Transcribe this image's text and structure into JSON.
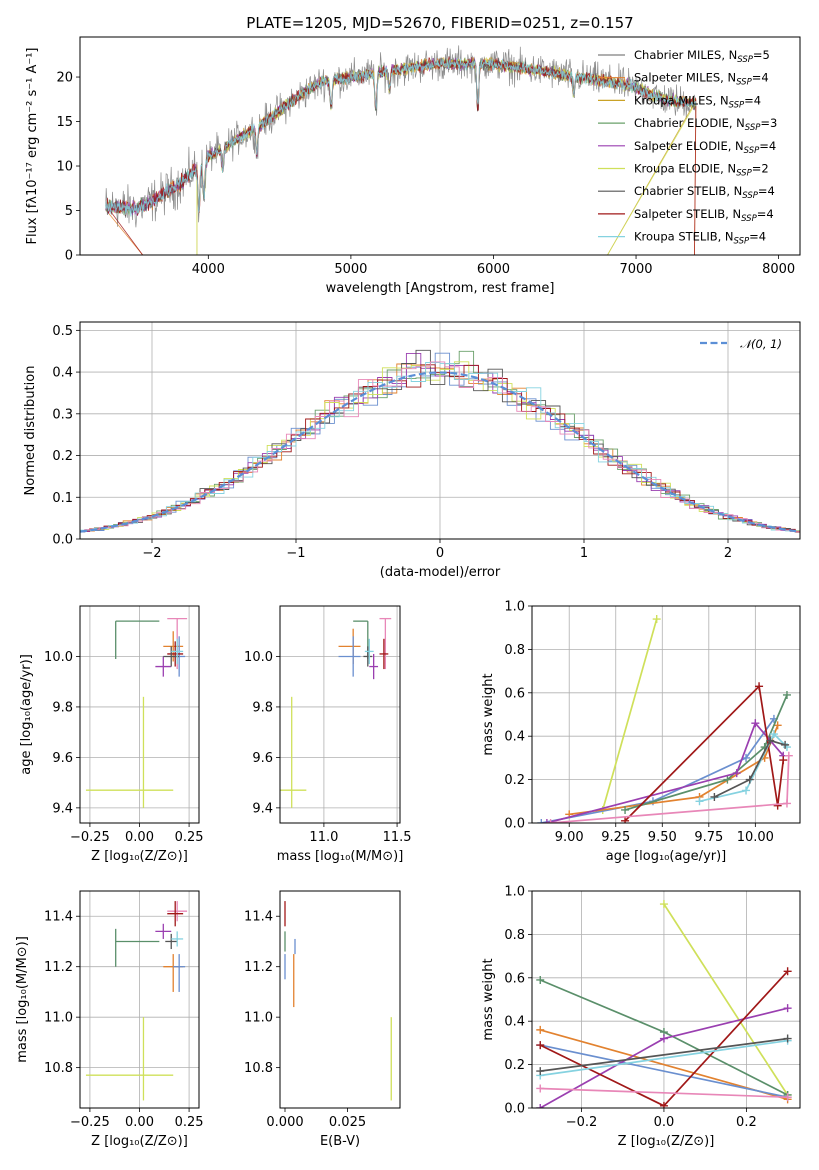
{
  "figure_title": "PLATE=1205, MJD=52670, FIBERID=0251, z=0.157",
  "colors": {
    "Chabrier MILES": "#6a8fcf",
    "Salpeter MILES": "#e2822f",
    "Kroupa MILES": "#c9a227",
    "Chabrier ELODIE": "#6aa06a",
    "Salpeter ELODIE": "#9a3fb0",
    "Kroupa ELODIE": "#cfe05a",
    "Chabrier STELIB": "#555555",
    "Salpeter STELIB": "#a01818",
    "Kroupa STELIB": "#85d2e0",
    "data": "#7f7f7f",
    "pink": "#e887b8",
    "green": "#5a8f6a",
    "normal": "#5b8fd6"
  },
  "chart_data": [
    {
      "id": "spectrum",
      "type": "line",
      "title": "PLATE=1205, MJD=52670, FIBERID=0251, z=0.157",
      "xlabel": "wavelength [Angstrom, rest frame]",
      "ylabel": "Flux [fλ10⁻¹⁷ erg cm⁻² s⁻¹ A⁻¹]",
      "xlim": [
        3100,
        8150
      ],
      "ylim": [
        0,
        24.5
      ],
      "xticks": [
        4000,
        5000,
        6000,
        7000,
        8000
      ],
      "yticks": [
        0,
        5,
        10,
        15,
        20
      ],
      "grid": false,
      "legend_position": "top-right",
      "continuum": [
        [
          3280,
          5.5
        ],
        [
          3500,
          5.2
        ],
        [
          3600,
          6.0
        ],
        [
          3800,
          8.0
        ],
        [
          4000,
          11.0
        ],
        [
          4200,
          13.0
        ],
        [
          4400,
          15.0
        ],
        [
          4600,
          17.5
        ],
        [
          4800,
          19.5
        ],
        [
          5000,
          20.0
        ],
        [
          5200,
          20.5
        ],
        [
          5400,
          21.0
        ],
        [
          5600,
          21.5
        ],
        [
          5800,
          21.5
        ],
        [
          6000,
          21.5
        ],
        [
          6200,
          21.0
        ],
        [
          6400,
          20.5
        ],
        [
          6600,
          20.0
        ],
        [
          6800,
          19.5
        ],
        [
          7000,
          18.8
        ],
        [
          7200,
          17.5
        ],
        [
          7400,
          17.0
        ]
      ],
      "series": [
        {
          "name": "Chabrier MILES, N_SSP=5",
          "label": "Chabrier MILES, N",
          "sub": "SSP",
          "n": "=5",
          "color_key": "data"
        },
        {
          "name": "Salpeter MILES, N_SSP=4",
          "label": "Salpeter MILES, N",
          "sub": "SSP",
          "n": "=4",
          "color_key": "Salpeter MILES"
        },
        {
          "name": "Kroupa MILES, N_SSP=4",
          "label": "Kroupa MILES, N",
          "sub": "SSP",
          "n": "=4",
          "color_key": "Kroupa MILES"
        },
        {
          "name": "Chabrier ELODIE, N_SSP=3",
          "label": "Chabrier ELODIE, N",
          "sub": "SSP",
          "n": "=3",
          "color_key": "Chabrier ELODIE"
        },
        {
          "name": "Salpeter ELODIE, N_SSP=4",
          "label": "Salpeter ELODIE, N",
          "sub": "SSP",
          "n": "=4",
          "color_key": "Salpeter ELODIE"
        },
        {
          "name": "Kroupa ELODIE, N_SSP=2",
          "label": "Kroupa ELODIE, N",
          "sub": "SSP",
          "n": "=2",
          "color_key": "Kroupa ELODIE"
        },
        {
          "name": "Chabrier STELIB, N_SSP=4",
          "label": "Chabrier STELIB, N",
          "sub": "SSP",
          "n": "=4",
          "color_key": "Chabrier STELIB"
        },
        {
          "name": "Salpeter STELIB, N_SSP=4",
          "label": "Salpeter STELIB, N",
          "sub": "SSP",
          "n": "=4",
          "color_key": "Salpeter STELIB"
        },
        {
          "name": "Kroupa STELIB, N_SSP=4",
          "label": "Kroupa STELIB, N",
          "sub": "SSP",
          "n": "=4",
          "color_key": "Kroupa STELIB"
        }
      ]
    },
    {
      "id": "residuals",
      "type": "line",
      "xlabel": "(data-model)/error",
      "ylabel": "Normed distribution",
      "xlim": [
        -2.5,
        2.5
      ],
      "ylim": [
        0,
        0.52
      ],
      "xticks": [
        -2,
        -1,
        0,
        1,
        2
      ],
      "yticks": [
        0.0,
        0.1,
        0.2,
        0.3,
        0.4,
        0.5
      ],
      "grid": true,
      "legend_position": "top-right",
      "legend_label": "𝒩(0, 1)",
      "bin_width": 0.1,
      "curve": "standard normal density"
    },
    {
      "id": "age_vs_Z",
      "type": "scatter",
      "xlabel": "Z [log₁₀(Z/Z⊙)]",
      "ylabel": "age  [log₁₀(age/yr)]",
      "xlim": [
        -0.3,
        0.3
      ],
      "ylim": [
        9.34,
        10.2
      ],
      "xticks": [
        -0.25,
        0.0,
        0.25
      ],
      "yticks": [
        9.4,
        9.6,
        9.8,
        10.0
      ],
      "grid": true,
      "points": [
        {
          "color_key": "Kroupa ELODIE",
          "x": 0.02,
          "xerr": [
            0.29,
            0.15
          ],
          "y": 9.47,
          "yerr": [
            0.07,
            0.37
          ]
        },
        {
          "color_key": "green",
          "x": -0.12,
          "xerr": [
            0.0,
            0.22
          ],
          "y": 10.14,
          "yerr": [
            0.15,
            0.0
          ]
        },
        {
          "color_key": "pink",
          "x": 0.19,
          "xerr": [
            0.05,
            0.05
          ],
          "y": 10.15,
          "yerr": [
            0.2,
            0.0
          ]
        },
        {
          "color_key": "Salpeter MILES",
          "x": 0.17,
          "xerr": [
            0.05,
            0.05
          ],
          "y": 10.04,
          "yerr": [
            0.06,
            0.06
          ]
        },
        {
          "color_key": "Salpeter ELODIE",
          "x": 0.12,
          "xerr": [
            0.04,
            0.04
          ],
          "y": 9.96,
          "yerr": [
            0.04,
            0.04
          ]
        },
        {
          "color_key": "Chabrier MILES",
          "x": 0.2,
          "xerr": [
            0.03,
            0.03
          ],
          "y": 10.0,
          "yerr": [
            0.08,
            0.08
          ]
        },
        {
          "color_key": "Salpeter STELIB",
          "x": 0.18,
          "xerr": [
            0.04,
            0.04
          ],
          "y": 10.01,
          "yerr": [
            0.05,
            0.05
          ]
        },
        {
          "color_key": "Chabrier STELIB",
          "x": 0.16,
          "xerr": [
            0.04,
            0.04
          ],
          "y": 10.0,
          "yerr": [
            0.04,
            0.04
          ]
        },
        {
          "color_key": "Kroupa STELIB",
          "x": 0.19,
          "xerr": [
            0.03,
            0.03
          ],
          "y": 10.02,
          "yerr": [
            0.05,
            0.05
          ]
        }
      ]
    },
    {
      "id": "age_vs_mass",
      "type": "scatter",
      "xlabel": "mass [log₁₀(M/M⊙)]",
      "ylabel": "",
      "xlim": [
        10.7,
        11.52
      ],
      "ylim": [
        9.34,
        10.2
      ],
      "xticks": [
        11.0,
        11.5
      ],
      "yticks": [
        9.4,
        9.6,
        9.8,
        10.0
      ],
      "grid": true,
      "points": [
        {
          "color_key": "Kroupa ELODIE",
          "x": 10.78,
          "xerr": [
            0.1,
            0.1
          ],
          "y": 9.47,
          "yerr": [
            0.07,
            0.37
          ]
        },
        {
          "color_key": "green",
          "x": 11.3,
          "xerr": [
            0.1,
            0.0
          ],
          "y": 10.14,
          "yerr": [
            0.15,
            0.0
          ]
        },
        {
          "color_key": "pink",
          "x": 11.42,
          "xerr": [
            0.04,
            0.04
          ],
          "y": 10.15,
          "yerr": [
            0.2,
            0.0
          ]
        },
        {
          "color_key": "Salpeter MILES",
          "x": 11.2,
          "xerr": [
            0.1,
            0.05
          ],
          "y": 10.04,
          "yerr": [
            0.07,
            0.07
          ]
        },
        {
          "color_key": "Chabrier MILES",
          "x": 11.2,
          "xerr": [
            0.1,
            0.05
          ],
          "y": 10.0,
          "yerr": [
            0.08,
            0.08
          ]
        },
        {
          "color_key": "Salpeter ELODIE",
          "x": 11.34,
          "xerr": [
            0.03,
            0.03
          ],
          "y": 9.96,
          "yerr": [
            0.05,
            0.05
          ]
        },
        {
          "color_key": "Salpeter STELIB",
          "x": 11.41,
          "xerr": [
            0.03,
            0.03
          ],
          "y": 10.01,
          "yerr": [
            0.06,
            0.06
          ]
        },
        {
          "color_key": "Chabrier STELIB",
          "x": 11.3,
          "xerr": [
            0.03,
            0.03
          ],
          "y": 10.0,
          "yerr": [
            0.04,
            0.04
          ]
        },
        {
          "color_key": "Kroupa STELIB",
          "x": 11.31,
          "xerr": [
            0.03,
            0.03
          ],
          "y": 10.02,
          "yerr": [
            0.05,
            0.05
          ]
        }
      ]
    },
    {
      "id": "weight_vs_age",
      "type": "line",
      "xlabel": "age  [log₁₀(age/yr)]",
      "ylabel": "mass weight",
      "xlim": [
        8.8,
        10.24
      ],
      "ylim": [
        0,
        1.0
      ],
      "xticks": [
        9.0,
        9.25,
        9.5,
        9.75,
        10.0
      ],
      "yticks": [
        0.0,
        0.2,
        0.4,
        0.6,
        0.8,
        1.0
      ],
      "grid": true,
      "series": [
        {
          "color_key": "Kroupa ELODIE",
          "x": [
            9.18,
            9.47
          ],
          "y": [
            0.06,
            0.94
          ]
        },
        {
          "color_key": "Chabrier MILES",
          "x": [
            8.85,
            9.45,
            9.95,
            10.1
          ],
          "y": [
            0.0,
            0.1,
            0.3,
            0.48
          ]
        },
        {
          "color_key": "Salpeter MILES",
          "x": [
            9.0,
            9.7,
            10.05,
            10.12
          ],
          "y": [
            0.04,
            0.12,
            0.3,
            0.45
          ]
        },
        {
          "color_key": "green",
          "x": [
            9.3,
            9.85,
            10.05,
            10.17
          ],
          "y": [
            0.06,
            0.2,
            0.35,
            0.59
          ]
        },
        {
          "color_key": "Salpeter ELODIE",
          "x": [
            8.88,
            9.9,
            10.0,
            10.15
          ],
          "y": [
            0.0,
            0.23,
            0.46,
            0.31
          ]
        },
        {
          "color_key": "Salpeter STELIB",
          "x": [
            9.3,
            10.02,
            10.12,
            10.15
          ],
          "y": [
            0.01,
            0.63,
            0.08,
            0.29
          ]
        },
        {
          "color_key": "Kroupa STELIB",
          "x": [
            9.7,
            9.95,
            10.1,
            10.17
          ],
          "y": [
            0.1,
            0.15,
            0.41,
            0.35
          ]
        },
        {
          "color_key": "Chabrier STELIB",
          "x": [
            9.78,
            9.97,
            10.08,
            10.16
          ],
          "y": [
            0.12,
            0.2,
            0.38,
            0.36
          ]
        },
        {
          "color_key": "pink",
          "x": [
            8.9,
            10.17,
            10.18
          ],
          "y": [
            0.0,
            0.09,
            0.31
          ]
        }
      ]
    },
    {
      "id": "mass_vs_Z",
      "type": "scatter",
      "xlabel": "Z [log₁₀(Z/Z⊙)]",
      "ylabel": "mass [log₁₀(M/M⊙)]",
      "xlim": [
        -0.3,
        0.3
      ],
      "ylim": [
        10.64,
        11.5
      ],
      "xticks": [
        -0.25,
        0.0,
        0.25
      ],
      "yticks": [
        10.8,
        11.0,
        11.2,
        11.4
      ],
      "grid": true,
      "points": [
        {
          "color_key": "Kroupa ELODIE",
          "x": 0.02,
          "xerr": [
            0.29,
            0.15
          ],
          "y": 10.77,
          "yerr": [
            0.1,
            0.23
          ]
        },
        {
          "color_key": "green",
          "x": -0.12,
          "xerr": [
            0.0,
            0.22
          ],
          "y": 11.3,
          "yerr": [
            0.1,
            0.05
          ]
        },
        {
          "color_key": "pink",
          "x": 0.19,
          "xerr": [
            0.05,
            0.05
          ],
          "y": 11.42,
          "yerr": [
            0.04,
            0.04
          ]
        },
        {
          "color_key": "Salpeter MILES",
          "x": 0.17,
          "xerr": [
            0.05,
            0.05
          ],
          "y": 11.2,
          "yerr": [
            0.1,
            0.05
          ]
        },
        {
          "color_key": "Chabrier MILES",
          "x": 0.2,
          "xerr": [
            0.03,
            0.03
          ],
          "y": 11.2,
          "yerr": [
            0.1,
            0.05
          ]
        },
        {
          "color_key": "Salpeter ELODIE",
          "x": 0.12,
          "xerr": [
            0.04,
            0.04
          ],
          "y": 11.34,
          "yerr": [
            0.03,
            0.03
          ]
        },
        {
          "color_key": "Salpeter STELIB",
          "x": 0.18,
          "xerr": [
            0.04,
            0.04
          ],
          "y": 11.41,
          "yerr": [
            0.05,
            0.05
          ]
        },
        {
          "color_key": "Chabrier STELIB",
          "x": 0.16,
          "xerr": [
            0.03,
            0.03
          ],
          "y": 11.3,
          "yerr": [
            0.03,
            0.03
          ]
        },
        {
          "color_key": "Kroupa STELIB",
          "x": 0.19,
          "xerr": [
            0.03,
            0.03
          ],
          "y": 11.31,
          "yerr": [
            0.03,
            0.03
          ]
        }
      ]
    },
    {
      "id": "mass_vs_ebv",
      "type": "scatter",
      "xlabel": "E(B-V)",
      "ylabel": "",
      "xlim": [
        -0.002,
        0.046
      ],
      "ylim": [
        10.64,
        11.5
      ],
      "xticks": [
        0.0,
        0.025
      ],
      "yticks": [
        10.8,
        11.0,
        11.2,
        11.4
      ],
      "grid": false,
      "points": [
        {
          "color_key": "Kroupa ELODIE",
          "x": 0.0425,
          "xerr": [
            0.0,
            0.0
          ],
          "y": 10.77,
          "yerr": [
            0.1,
            0.23
          ]
        },
        {
          "color_key": "Salpeter STELIB",
          "x": 0.0,
          "xerr": [
            0.0,
            0.0
          ],
          "y": 11.41,
          "yerr": [
            0.05,
            0.05
          ]
        },
        {
          "color_key": "green",
          "x": 0.0,
          "xerr": [
            0.0,
            0.0
          ],
          "y": 11.3,
          "yerr": [
            0.04,
            0.04
          ]
        },
        {
          "color_key": "Chabrier MILES",
          "x": 0.0,
          "xerr": [
            0.0,
            0.0
          ],
          "y": 11.2,
          "yerr": [
            0.05,
            0.05
          ]
        },
        {
          "color_key": "Salpeter MILES",
          "x": 0.0035,
          "xerr": [
            0.0,
            0.0
          ],
          "y": 11.2,
          "yerr": [
            0.16,
            0.05
          ]
        },
        {
          "color_key": "Chabrier MILES",
          "x": 0.004,
          "xerr": [
            0.0,
            0.0
          ],
          "y": 11.28,
          "yerr": [
            0.03,
            0.03
          ]
        }
      ]
    },
    {
      "id": "weight_vs_Z",
      "type": "line",
      "xlabel": "Z [log₁₀(Z/Z⊙)]",
      "ylabel": "mass weight",
      "xlim": [
        -0.32,
        0.33
      ],
      "ylim": [
        0,
        1.0
      ],
      "xticks": [
        -0.2,
        0.0,
        0.2
      ],
      "yticks": [
        0.0,
        0.2,
        0.4,
        0.6,
        0.8,
        1.0
      ],
      "grid": true,
      "series": [
        {
          "color_key": "Kroupa ELODIE",
          "x": [
            0.0,
            0.3
          ],
          "y": [
            0.94,
            0.06
          ]
        },
        {
          "color_key": "green",
          "x": [
            -0.3,
            0.0,
            0.3
          ],
          "y": [
            0.59,
            0.35,
            0.06
          ]
        },
        {
          "color_key": "Salpeter MILES",
          "x": [
            -0.3,
            0.3
          ],
          "y": [
            0.36,
            0.04
          ]
        },
        {
          "color_key": "Chabrier MILES",
          "x": [
            -0.3,
            0.3
          ],
          "y": [
            0.29,
            0.05
          ]
        },
        {
          "color_key": "Salpeter ELODIE",
          "x": [
            -0.3,
            0.0,
            0.3
          ],
          "y": [
            0.0,
            0.32,
            0.46
          ]
        },
        {
          "color_key": "Salpeter STELIB",
          "x": [
            -0.3,
            0.0,
            0.3
          ],
          "y": [
            0.29,
            0.01,
            0.63
          ]
        },
        {
          "color_key": "Kroupa STELIB",
          "x": [
            -0.3,
            0.3
          ],
          "y": [
            0.15,
            0.31
          ]
        },
        {
          "color_key": "Chabrier STELIB",
          "x": [
            -0.3,
            0.3
          ],
          "y": [
            0.17,
            0.32
          ]
        },
        {
          "color_key": "pink",
          "x": [
            -0.3,
            0.3
          ],
          "y": [
            0.09,
            0.05
          ]
        }
      ]
    }
  ]
}
